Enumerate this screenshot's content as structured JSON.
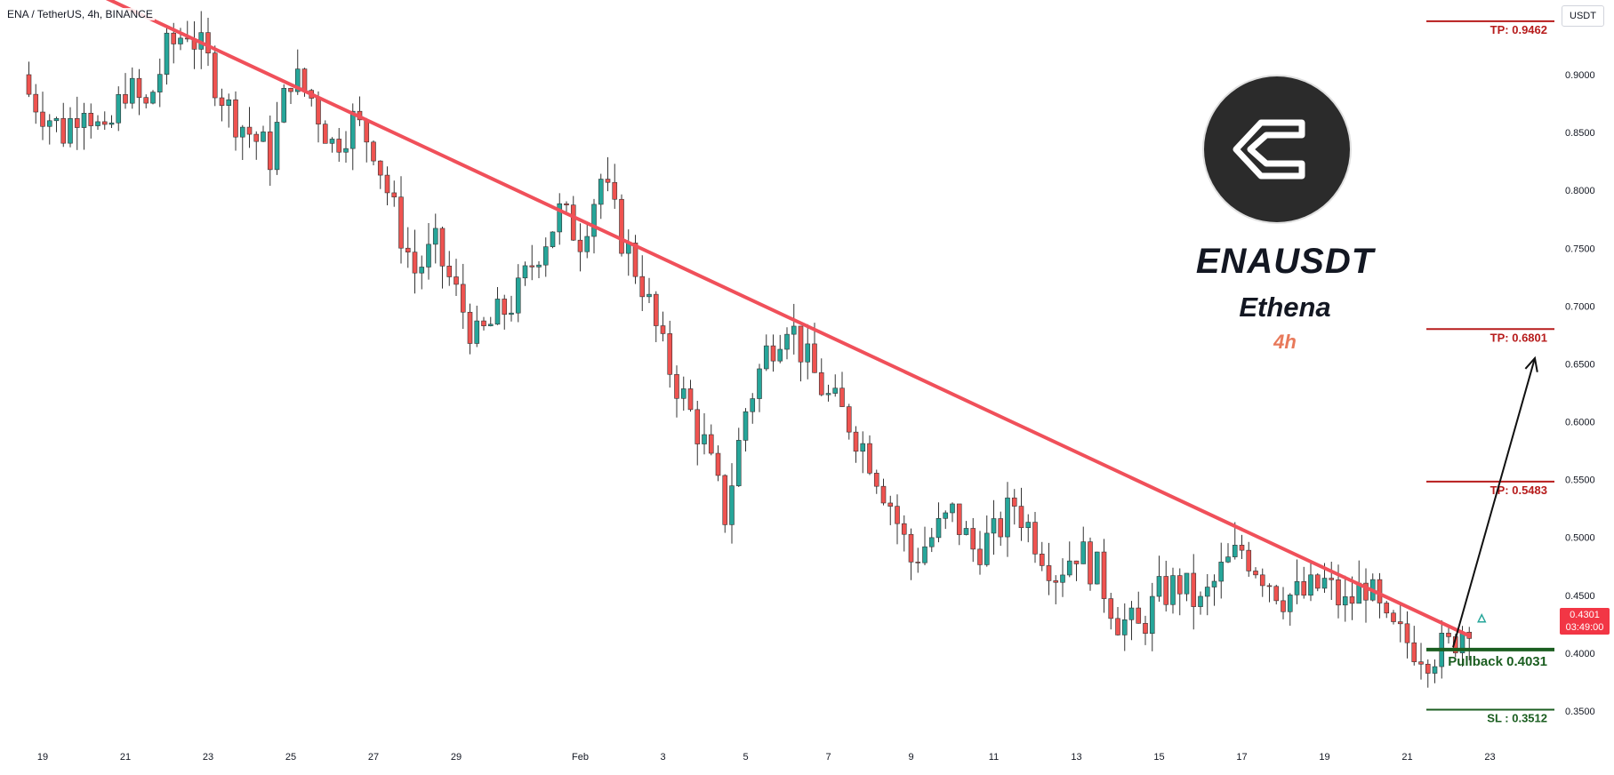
{
  "header": {
    "symbol": "ENA / TetherUS, 4h, BINANCE",
    "currency": "USDT"
  },
  "overlay": {
    "ticker": "ENAUSDT",
    "name": "Ethena",
    "timeframe": "4h",
    "logo": "ethena-logo-icon"
  },
  "current_price": {
    "value": "0.4301",
    "countdown": "03:49:00"
  },
  "levels": {
    "tp3": "TP: 0.9462",
    "tp2": "TP: 0.6801",
    "tp1": "TP: 0.5483",
    "pullback": "Pullback 0.4031",
    "sl": "SL : 0.3512"
  },
  "colors": {
    "up": "#26a69a",
    "down": "#ef5350",
    "trendline": "#f0505a",
    "tp_line": "#b71c1c",
    "sl_line": "#1b5e20",
    "pullback_line": "#1b5e20",
    "price_badge": "#f23645"
  },
  "chart_data": {
    "type": "candlestick",
    "title": "",
    "y_axis": {
      "ticks": [
        "0.9000",
        "0.8500",
        "0.8000",
        "0.7500",
        "0.7000",
        "0.6500",
        "0.6000",
        "0.5500",
        "0.5000",
        "0.4500",
        "0.4000",
        "0.3500"
      ],
      "ylim": [
        0.335,
        0.955
      ]
    },
    "x_axis": {
      "ticks": [
        "19",
        "21",
        "23",
        "25",
        "27",
        "29",
        "Feb",
        "3",
        "5",
        "7",
        "9",
        "11",
        "13",
        "15",
        "17",
        "19",
        "21",
        "23"
      ],
      "xlim_days": [
        17.5,
        53.5
      ]
    },
    "close_series": [
      [
        18.5,
        0.89
      ],
      [
        19.0,
        0.87
      ],
      [
        19.5,
        0.85
      ],
      [
        20.0,
        0.88
      ],
      [
        20.5,
        0.84
      ],
      [
        21.0,
        0.89
      ],
      [
        21.5,
        0.87
      ],
      [
        22.0,
        0.92
      ],
      [
        22.5,
        0.94
      ],
      [
        23.0,
        0.91
      ],
      [
        23.5,
        0.87
      ],
      [
        24.0,
        0.85
      ],
      [
        24.5,
        0.83
      ],
      [
        25.0,
        0.9
      ],
      [
        25.5,
        0.88
      ],
      [
        26.0,
        0.84
      ],
      [
        26.5,
        0.86
      ],
      [
        27.0,
        0.84
      ],
      [
        27.5,
        0.78
      ],
      [
        28.0,
        0.73
      ],
      [
        28.5,
        0.75
      ],
      [
        29.0,
        0.71
      ],
      [
        29.5,
        0.67
      ],
      [
        30.0,
        0.69
      ],
      [
        30.5,
        0.71
      ],
      [
        31.0,
        0.75
      ],
      [
        31.5,
        0.78
      ],
      [
        32.0,
        0.76
      ],
      [
        32.5,
        0.81
      ],
      [
        33.0,
        0.76
      ],
      [
        33.5,
        0.72
      ],
      [
        34.0,
        0.66
      ],
      [
        34.5,
        0.62
      ],
      [
        35.0,
        0.58
      ],
      [
        35.5,
        0.52
      ],
      [
        36.0,
        0.61
      ],
      [
        36.5,
        0.66
      ],
      [
        37.0,
        0.69
      ],
      [
        37.5,
        0.65
      ],
      [
        38.0,
        0.62
      ],
      [
        38.5,
        0.6
      ],
      [
        39.0,
        0.57
      ],
      [
        39.5,
        0.53
      ],
      [
        40.0,
        0.48
      ],
      [
        40.5,
        0.5
      ],
      [
        41.0,
        0.52
      ],
      [
        41.5,
        0.49
      ],
      [
        42.0,
        0.5
      ],
      [
        42.5,
        0.53
      ],
      [
        43.0,
        0.5
      ],
      [
        43.5,
        0.47
      ],
      [
        44.0,
        0.49
      ],
      [
        44.5,
        0.47
      ],
      [
        45.0,
        0.43
      ],
      [
        45.5,
        0.42
      ],
      [
        46.0,
        0.45
      ],
      [
        46.5,
        0.46
      ],
      [
        47.0,
        0.44
      ],
      [
        47.5,
        0.47
      ],
      [
        48.0,
        0.49
      ],
      [
        48.5,
        0.47
      ],
      [
        49.0,
        0.45
      ],
      [
        49.5,
        0.45
      ],
      [
        50.0,
        0.46
      ],
      [
        50.5,
        0.44
      ],
      [
        51.0,
        0.46
      ],
      [
        51.5,
        0.42
      ],
      [
        52.0,
        0.41
      ],
      [
        52.5,
        0.4
      ],
      [
        53.0,
        0.405
      ],
      [
        53.5,
        0.4301
      ]
    ],
    "trendline": {
      "from": [
        20.0,
        0.975
      ],
      "to": [
        53.5,
        0.415
      ]
    },
    "projection_arrow": {
      "from": [
        53.8,
        0.405
      ],
      "to": [
        55.3,
        0.655
      ]
    },
    "horizontal_levels": [
      {
        "label": "TP: 0.9462",
        "value": 0.9462
      },
      {
        "label": "TP: 0.6801",
        "value": 0.6801
      },
      {
        "label": "TP: 0.5483",
        "value": 0.5483
      },
      {
        "label": "Pullback 0.4031",
        "value": 0.4031
      },
      {
        "label": "SL : 0.3512",
        "value": 0.3512
      }
    ]
  }
}
